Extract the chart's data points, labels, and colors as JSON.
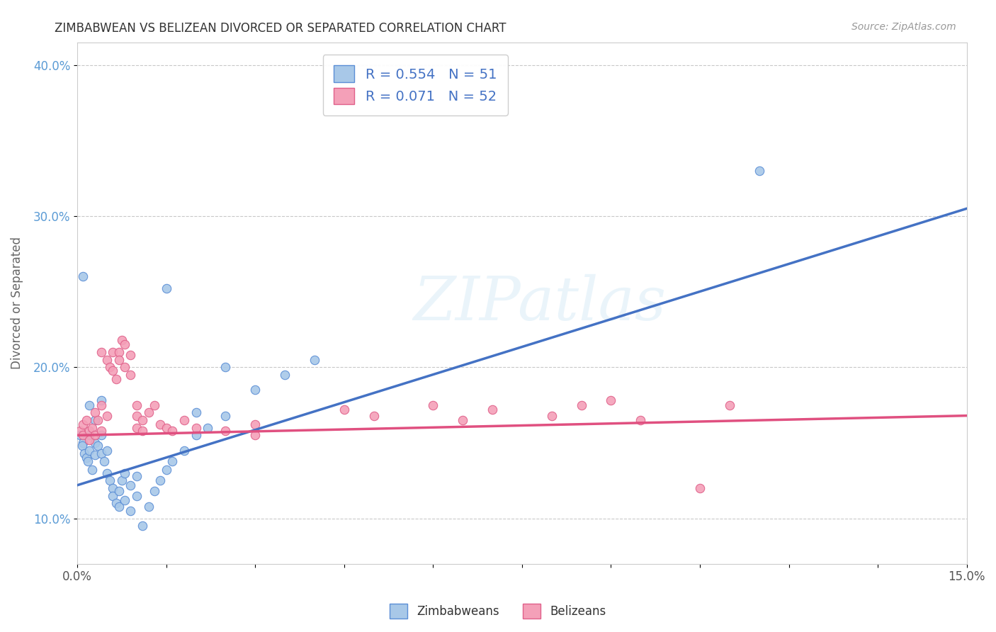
{
  "title": "ZIMBABWEAN VS BELIZEAN DIVORCED OR SEPARATED CORRELATION CHART",
  "source": "Source: ZipAtlas.com",
  "ylabel_label": "Divorced or Separated",
  "xlim": [
    0.0,
    0.15
  ],
  "ylim": [
    0.07,
    0.415
  ],
  "xticks": [
    0.0,
    0.015,
    0.03,
    0.045,
    0.06,
    0.075,
    0.09,
    0.105,
    0.12,
    0.135,
    0.15
  ],
  "xtick_labels": [
    "0.0%",
    "",
    "",
    "",
    "",
    "",
    "",
    "",
    "",
    "",
    "15.0%"
  ],
  "yticks": [
    0.1,
    0.2,
    0.3,
    0.4
  ],
  "ytick_labels": [
    "10.0%",
    "20.0%",
    "30.0%",
    "40.0%"
  ],
  "r_blue": 0.554,
  "n_blue": 51,
  "r_pink": 0.071,
  "n_pink": 52,
  "blue_fill": "#A8C8E8",
  "pink_fill": "#F4A0B8",
  "blue_edge": "#5B8ED6",
  "pink_edge": "#E0608A",
  "blue_line": "#4472C4",
  "pink_line": "#E05080",
  "watermark_text": "ZIPatlas",
  "scatter_blue": [
    [
      0.0005,
      0.155
    ],
    [
      0.001,
      0.15
    ],
    [
      0.0008,
      0.148
    ],
    [
      0.0012,
      0.143
    ],
    [
      0.0015,
      0.14
    ],
    [
      0.0018,
      0.138
    ],
    [
      0.002,
      0.155
    ],
    [
      0.002,
      0.145
    ],
    [
      0.0025,
      0.132
    ],
    [
      0.003,
      0.15
    ],
    [
      0.003,
      0.142
    ],
    [
      0.0035,
      0.148
    ],
    [
      0.004,
      0.155
    ],
    [
      0.004,
      0.143
    ],
    [
      0.0045,
      0.138
    ],
    [
      0.005,
      0.145
    ],
    [
      0.005,
      0.13
    ],
    [
      0.0055,
      0.125
    ],
    [
      0.006,
      0.12
    ],
    [
      0.006,
      0.115
    ],
    [
      0.0065,
      0.11
    ],
    [
      0.007,
      0.108
    ],
    [
      0.007,
      0.118
    ],
    [
      0.0075,
      0.125
    ],
    [
      0.008,
      0.13
    ],
    [
      0.008,
      0.112
    ],
    [
      0.009,
      0.122
    ],
    [
      0.009,
      0.105
    ],
    [
      0.01,
      0.115
    ],
    [
      0.01,
      0.128
    ],
    [
      0.011,
      0.095
    ],
    [
      0.012,
      0.108
    ],
    [
      0.013,
      0.118
    ],
    [
      0.014,
      0.125
    ],
    [
      0.015,
      0.132
    ],
    [
      0.016,
      0.138
    ],
    [
      0.018,
      0.145
    ],
    [
      0.02,
      0.155
    ],
    [
      0.022,
      0.16
    ],
    [
      0.025,
      0.168
    ],
    [
      0.015,
      0.252
    ],
    [
      0.02,
      0.17
    ],
    [
      0.025,
      0.2
    ],
    [
      0.001,
      0.26
    ],
    [
      0.002,
      0.175
    ],
    [
      0.003,
      0.165
    ],
    [
      0.004,
      0.178
    ],
    [
      0.03,
      0.185
    ],
    [
      0.035,
      0.195
    ],
    [
      0.04,
      0.205
    ],
    [
      0.115,
      0.33
    ]
  ],
  "scatter_pink": [
    [
      0.0005,
      0.158
    ],
    [
      0.001,
      0.162
    ],
    [
      0.001,
      0.155
    ],
    [
      0.0015,
      0.165
    ],
    [
      0.002,
      0.158
    ],
    [
      0.002,
      0.152
    ],
    [
      0.0025,
      0.16
    ],
    [
      0.003,
      0.17
    ],
    [
      0.003,
      0.155
    ],
    [
      0.0035,
      0.165
    ],
    [
      0.004,
      0.175
    ],
    [
      0.004,
      0.158
    ],
    [
      0.004,
      0.21
    ],
    [
      0.005,
      0.168
    ],
    [
      0.005,
      0.205
    ],
    [
      0.0055,
      0.2
    ],
    [
      0.006,
      0.21
    ],
    [
      0.006,
      0.198
    ],
    [
      0.0065,
      0.192
    ],
    [
      0.007,
      0.21
    ],
    [
      0.007,
      0.205
    ],
    [
      0.0075,
      0.218
    ],
    [
      0.008,
      0.215
    ],
    [
      0.008,
      0.2
    ],
    [
      0.009,
      0.208
    ],
    [
      0.009,
      0.195
    ],
    [
      0.01,
      0.175
    ],
    [
      0.01,
      0.168
    ],
    [
      0.01,
      0.16
    ],
    [
      0.011,
      0.158
    ],
    [
      0.011,
      0.165
    ],
    [
      0.012,
      0.17
    ],
    [
      0.013,
      0.175
    ],
    [
      0.014,
      0.162
    ],
    [
      0.015,
      0.16
    ],
    [
      0.016,
      0.158
    ],
    [
      0.018,
      0.165
    ],
    [
      0.02,
      0.16
    ],
    [
      0.025,
      0.158
    ],
    [
      0.03,
      0.162
    ],
    [
      0.03,
      0.155
    ],
    [
      0.045,
      0.172
    ],
    [
      0.05,
      0.168
    ],
    [
      0.06,
      0.175
    ],
    [
      0.065,
      0.165
    ],
    [
      0.07,
      0.172
    ],
    [
      0.08,
      0.168
    ],
    [
      0.085,
      0.175
    ],
    [
      0.09,
      0.178
    ],
    [
      0.095,
      0.165
    ],
    [
      0.105,
      0.12
    ],
    [
      0.11,
      0.175
    ]
  ]
}
